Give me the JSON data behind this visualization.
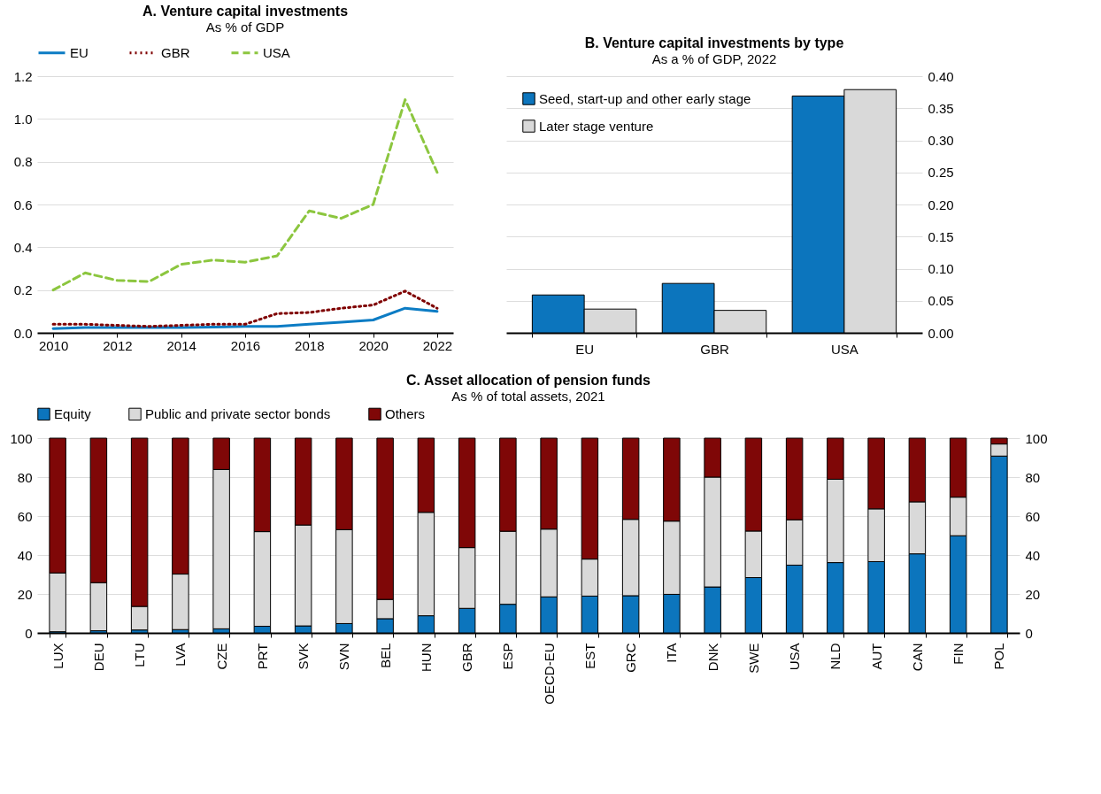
{
  "chart_data": [
    {
      "type": "line",
      "title": "A. Venture capital investments",
      "subtitle": "As % of GDP",
      "x": [
        2010,
        2011,
        2012,
        2013,
        2014,
        2015,
        2016,
        2017,
        2018,
        2019,
        2020,
        2021,
        2022
      ],
      "series": [
        {
          "name": "EU",
          "color": "#0c7cc4",
          "line_style": "solid",
          "values": [
            0.02,
            0.025,
            0.025,
            0.025,
            0.025,
            0.027,
            0.03,
            0.03,
            0.04,
            0.05,
            0.06,
            0.115,
            0.1
          ]
        },
        {
          "name": "GBR",
          "color": "#7f0000",
          "line_style": "dotted",
          "values": [
            0.04,
            0.04,
            0.035,
            0.03,
            0.035,
            0.04,
            0.04,
            0.09,
            0.095,
            0.115,
            0.13,
            0.195,
            0.115
          ]
        },
        {
          "name": "USA",
          "color": "#8cc63f",
          "line_style": "dashed",
          "values": [
            0.2,
            0.28,
            0.245,
            0.24,
            0.32,
            0.34,
            0.33,
            0.36,
            0.57,
            0.535,
            0.6,
            1.09,
            0.75
          ]
        }
      ],
      "xlim": [
        2009.5,
        2022.5
      ],
      "xticks": [
        2010,
        2012,
        2014,
        2016,
        2018,
        2020,
        2022
      ],
      "ylim": [
        0,
        1.2
      ],
      "yticks": [
        {
          "value": 0,
          "label": "0.0"
        },
        0.2,
        0.4,
        0.6,
        0.8,
        {
          "value": 1,
          "label": "1.0"
        },
        1.2
      ],
      "grid": "y",
      "legend": "top"
    },
    {
      "type": "bar",
      "title": "B. Venture capital investments by type",
      "subtitle": "As a % of GDP, 2022",
      "categories": [
        "EU",
        "GBR",
        "USA"
      ],
      "series": [
        {
          "name": "Seed, start-up and other early stage",
          "color": "#0c75bd",
          "axis": "y2",
          "values": [
            0.059,
            0.077,
            0.369
          ]
        },
        {
          "name": "Later stage venture",
          "color": "#d9d9d9",
          "axis": "y2",
          "values": [
            0.037,
            0.035,
            0.379
          ]
        }
      ],
      "y2lim": [
        0,
        0.4
      ],
      "y2ticks": [
        {
          "value": 0,
          "label": "0.00"
        },
        0.05,
        {
          "value": 0.1,
          "label": "0.10"
        },
        0.15,
        {
          "value": 0.2,
          "label": "0.20"
        },
        0.25,
        {
          "value": 0.3,
          "label": "0.30"
        },
        0.35,
        {
          "value": 0.4,
          "label": "0.40"
        }
      ],
      "grid": "y",
      "legend": "top left"
    },
    {
      "type": "bar",
      "stacked": true,
      "title": "C. Asset allocation of pension funds",
      "subtitle": "As % of total assets, 2021",
      "categories": [
        "LUX",
        "DEU",
        "LTU",
        "LVA",
        "CZE",
        "PRT",
        "SVK",
        "SVN",
        "BEL",
        "HUN",
        "GBR",
        "ESP",
        "OECD-EU",
        "EST",
        "GRC",
        "ITA",
        "DNK",
        "SWE",
        "USA",
        "NLD",
        "AUT",
        "CAN",
        "FIN",
        "POL"
      ],
      "series": [
        {
          "name": "Equity",
          "color": "#0c75bd",
          "values": [
            0.6,
            1.1,
            1.5,
            1.7,
            2.1,
            3.4,
            3.6,
            4.8,
            7.3,
            8.8,
            12.6,
            14.7,
            18.5,
            18.9,
            19.1,
            19.8,
            23.6,
            28.4,
            34.8,
            36.1,
            36.6,
            40.6,
            49.9,
            90.8
          ]
        },
        {
          "name": "Public and private sector bonds",
          "color": "#d9d9d9",
          "values": [
            30.2,
            24.7,
            12.1,
            28.5,
            81.8,
            48.6,
            51.8,
            48.2,
            9.9,
            53.1,
            31.2,
            37.5,
            34.8,
            19.0,
            39.2,
            37.6,
            56.4,
            23.9,
            23.3,
            42.8,
            27.1,
            26.7,
            19.8,
            6.2
          ]
        },
        {
          "name": "Others",
          "color": "#7f0707",
          "values": [
            69.2,
            74.2,
            86.4,
            69.8,
            16.1,
            48.0,
            44.6,
            47.0,
            82.8,
            38.1,
            56.2,
            47.8,
            46.7,
            62.1,
            41.7,
            42.6,
            20.0,
            47.7,
            41.9,
            21.1,
            36.3,
            32.7,
            30.3,
            3.0
          ]
        }
      ],
      "ylim": [
        0,
        100
      ],
      "yticks": [
        0,
        20,
        40,
        60,
        80,
        100
      ],
      "y2lim": [
        0,
        100
      ],
      "y2ticks": [
        0,
        20,
        40,
        60,
        80,
        100
      ],
      "grid": "y",
      "legend": "top"
    }
  ]
}
